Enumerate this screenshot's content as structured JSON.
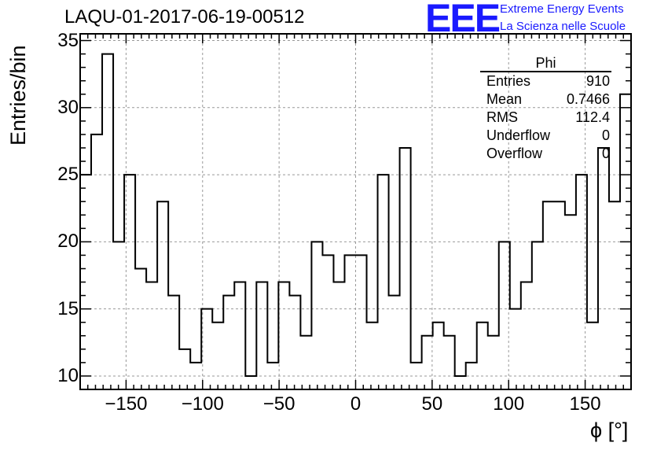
{
  "header": {
    "title": "LAQU-01-2017-06-19-00512"
  },
  "logo": {
    "mark": "EEE",
    "line1": "Extreme Energy Events",
    "line2": "La Scienza nelle Scuole",
    "color": "#1a1aff"
  },
  "stats_box": {
    "title": "Phi",
    "rows": [
      {
        "label": "Entries",
        "value": "910"
      },
      {
        "label": "Mean",
        "value": "0.7466"
      },
      {
        "label": "RMS",
        "value": "112.4"
      },
      {
        "label": "Underflow",
        "value": "0"
      },
      {
        "label": "Overflow",
        "value": "0"
      }
    ]
  },
  "chart_data": {
    "type": "bar",
    "style": "step-histogram",
    "xlabel": "ϕ [°]",
    "ylabel": "Entries/bin",
    "xlim": [
      -180,
      180
    ],
    "ylim": [
      9,
      35.5
    ],
    "bin_width": 7.2,
    "x_ticks": [
      -150,
      -100,
      -50,
      0,
      50,
      100,
      150
    ],
    "x_tick_labels": [
      "−150",
      "−100",
      "−50",
      "0",
      "50",
      "100",
      "150"
    ],
    "y_ticks": [
      10,
      15,
      20,
      25,
      30,
      35
    ],
    "y_tick_labels": [
      "10",
      "15",
      "20",
      "25",
      "30",
      "35"
    ],
    "grid": true,
    "values": [
      25,
      28,
      34,
      20,
      25,
      18,
      17,
      23,
      16,
      12,
      11,
      15,
      14,
      16,
      17,
      10,
      17,
      11,
      17,
      16,
      13,
      20,
      19,
      17,
      19,
      19,
      14,
      25,
      16,
      27,
      11,
      13,
      14,
      13,
      10,
      11,
      14,
      13,
      20,
      15,
      17,
      20,
      23,
      23,
      22,
      25,
      14,
      27,
      23,
      31
    ]
  }
}
